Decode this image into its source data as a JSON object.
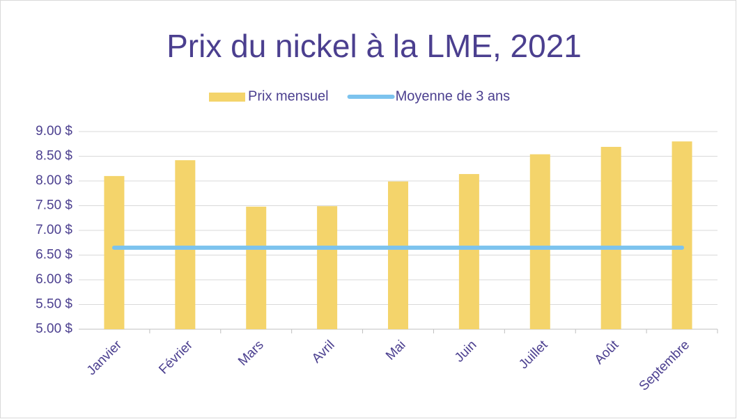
{
  "chart_data": {
    "type": "bar",
    "title": "Prix du nickel à la LME, 2021",
    "categories": [
      "Janvier",
      "Février",
      "Mars",
      "Avril",
      "Mai",
      "Juin",
      "Juillet",
      "Août",
      "Septembre"
    ],
    "series": [
      {
        "name": "Prix mensuel",
        "type": "bar",
        "color": "#f4d46b",
        "values": [
          8.1,
          8.42,
          7.48,
          7.49,
          7.99,
          8.14,
          8.54,
          8.69,
          8.8
        ]
      },
      {
        "name": "Moyenne de 3 ans",
        "type": "line",
        "color": "#7cc3ee",
        "values": [
          6.65,
          6.65,
          6.65,
          6.65,
          6.65,
          6.65,
          6.65,
          6.65,
          6.65
        ]
      }
    ],
    "ylim": [
      5,
      9
    ],
    "yticks": [
      {
        "value": 5,
        "label": "5.00 $"
      },
      {
        "value": 5.5,
        "label": "5.50 $"
      },
      {
        "value": 6,
        "label": "6.00 $"
      },
      {
        "value": 6.5,
        "label": "6.50 $"
      },
      {
        "value": 7,
        "label": "7.00 $"
      },
      {
        "value": 7.5,
        "label": "7.50 $"
      },
      {
        "value": 8,
        "label": "8.00 $"
      },
      {
        "value": 8.5,
        "label": "8.50 $"
      },
      {
        "value": 9,
        "label": "9.00 $"
      }
    ],
    "grid": true,
    "legend": "top"
  }
}
